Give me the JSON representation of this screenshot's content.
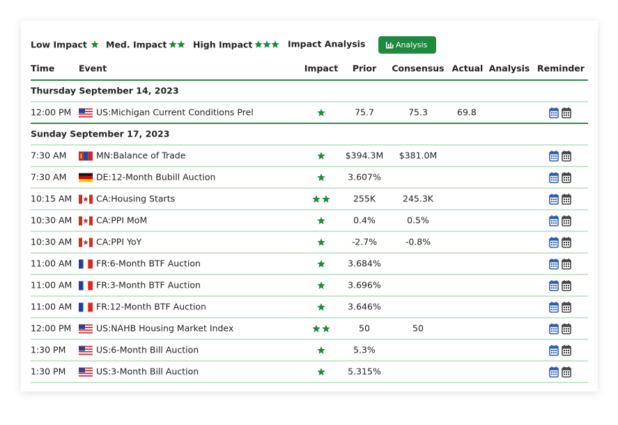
{
  "legend": [
    {
      "label": "Low Impact",
      "stars": 1
    },
    {
      "label": "Med. Impact",
      "stars": 2
    },
    {
      "label": "High Impact",
      "stars": 3
    }
  ],
  "impact_analysis_label": "Impact Analysis",
  "analysis_button": "Analysis",
  "columns": [
    "Time",
    "Event",
    "Impact",
    "Prior",
    "Consensus",
    "Actual",
    "Analysis",
    "Reminder"
  ],
  "groups": [
    {
      "date": "Thursday September 14, 2023",
      "rows": [
        {
          "time": "12:00 PM",
          "event": "US:Michigan Current Conditions Prel",
          "impact": 1,
          "prior": "75.7",
          "consensus": "75.3",
          "actual": "69.8"
        }
      ]
    },
    {
      "date": "Sunday September 17, 2023",
      "rows": [
        {
          "time": "7:30 AM",
          "event": "MN:Balance of Trade",
          "impact": 1,
          "prior": "$394.3M",
          "consensus": "$381.0M",
          "actual": null
        },
        {
          "time": "7:30 AM",
          "event": "DE:12-Month Bubill Auction",
          "impact": 1,
          "prior": "3.607%",
          "consensus": null,
          "actual": null
        },
        {
          "time": "10:15 AM",
          "event": "CA:Housing Starts",
          "impact": 2,
          "prior": "255K",
          "consensus": "245.3K",
          "actual": null
        },
        {
          "time": "10:30 AM",
          "event": "CA:PPI MoM",
          "impact": 1,
          "prior": "0.4%",
          "consensus": "0.5%",
          "actual": null
        },
        {
          "time": "10:30 AM",
          "event": "CA:PPI YoY",
          "impact": 1,
          "prior": "-2.7%",
          "consensus": "-0.8%",
          "actual": null
        },
        {
          "time": "11:00 AM",
          "event": "FR:6-Month BTF Auction",
          "impact": 1,
          "prior": "3.684%",
          "consensus": null,
          "actual": null
        },
        {
          "time": "11:00 AM",
          "event": "FR:3-Month BTF Auction",
          "impact": 1,
          "prior": "3.696%",
          "consensus": null,
          "actual": null
        },
        {
          "time": "11:00 AM",
          "event": "FR:12-Month BTF Auction",
          "impact": 1,
          "prior": "3.646%",
          "consensus": null,
          "actual": null
        },
        {
          "time": "12:00 PM",
          "event": "US:NAHB Housing Market Index",
          "impact": 2,
          "prior": "50",
          "consensus": "50",
          "actual": null
        },
        {
          "time": "1:30 PM",
          "event": "US:6-Month Bill Auction",
          "impact": 1,
          "prior": "5.3%",
          "consensus": null,
          "actual": null
        },
        {
          "time": "1:30 PM",
          "event": "US:3-Month Bill Auction",
          "impact": 1,
          "prior": "5.315%",
          "consensus": null,
          "actual": null
        }
      ]
    }
  ]
}
